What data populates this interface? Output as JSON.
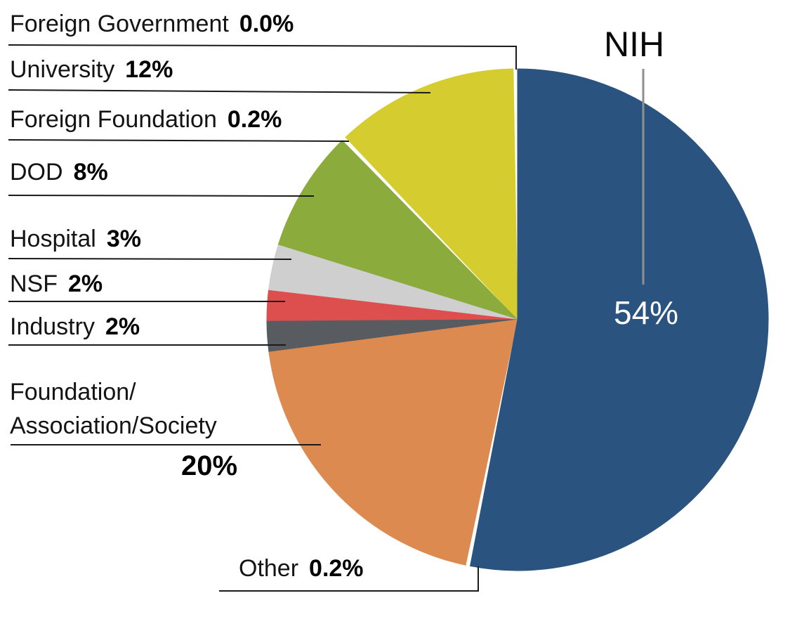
{
  "chart_data": {
    "type": "pie",
    "title": "",
    "legend_position": "left-callouts",
    "center_slice_label_inside": "54%",
    "background_color": "#FFFFFF",
    "leader_line_color": "#1A1A1A",
    "nih_callout_line_color": "#8F8F8F",
    "slices": [
      {
        "label": "Foreign Government",
        "pct_label": "0.0%",
        "value": 0.0,
        "color": "#FFFFFF"
      },
      {
        "label": "University",
        "pct_label": "12%",
        "value": 12,
        "color": "#D5CD2F"
      },
      {
        "label": "Foreign Foundation",
        "pct_label": "0.2%",
        "value": 0.2,
        "color": "#FFFFFF"
      },
      {
        "label": "DOD",
        "pct_label": "8%",
        "value": 8,
        "color": "#8BAB3C"
      },
      {
        "label": "Hospital",
        "pct_label": "3%",
        "value": 3,
        "color": "#CFCFCF"
      },
      {
        "label": "NSF",
        "pct_label": "2%",
        "value": 2,
        "color": "#DD4F4F"
      },
      {
        "label": "Industry",
        "pct_label": "2%",
        "value": 2,
        "color": "#585B5F"
      },
      {
        "label": "Foundation/\nAssociation/Society",
        "pct_label": "20%",
        "value": 20,
        "color": "#DC8A50"
      },
      {
        "label": "Other",
        "pct_label": "0.2%",
        "value": 0.2,
        "color": "#FFFFFF"
      },
      {
        "label": "NIH",
        "pct_label": "54%",
        "value": 54,
        "color": "#2A547F"
      }
    ]
  }
}
